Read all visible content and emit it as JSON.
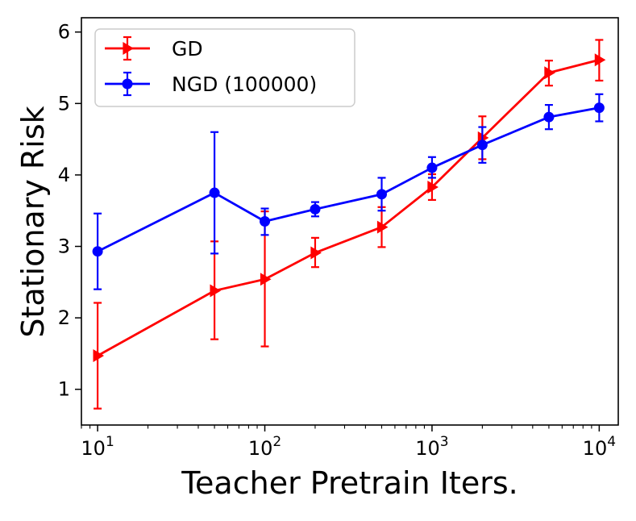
{
  "chart_data": {
    "type": "line",
    "xscale": "log",
    "xlabel": "Teacher Pretrain Iters.",
    "ylabel": "Stationary Risk",
    "xlim": [
      8,
      13000
    ],
    "ylim": [
      0.5,
      6.2
    ],
    "xticks": [
      {
        "value": 10,
        "base": "10",
        "exp": "1"
      },
      {
        "value": 100,
        "base": "10",
        "exp": "2"
      },
      {
        "value": 1000,
        "base": "10",
        "exp": "3"
      },
      {
        "value": 10000,
        "base": "10",
        "exp": "4"
      }
    ],
    "yticks": [
      {
        "value": 1,
        "label": "1"
      },
      {
        "value": 2,
        "label": "2"
      },
      {
        "value": 3,
        "label": "3"
      },
      {
        "value": 4,
        "label": "4"
      },
      {
        "value": 5,
        "label": "5"
      },
      {
        "value": 6,
        "label": "6"
      }
    ],
    "grid": false,
    "legend_position": "top-left",
    "series": [
      {
        "name": "GD",
        "color": "#ff0000",
        "marker": "triangle-right",
        "x": [
          10,
          50,
          100,
          200,
          500,
          1000,
          2000,
          5000,
          10000
        ],
        "y": [
          1.47,
          2.38,
          2.54,
          2.91,
          3.27,
          3.83,
          4.52,
          5.43,
          5.61
        ],
        "err_low": [
          0.73,
          1.7,
          1.6,
          2.71,
          2.99,
          3.65,
          4.22,
          5.25,
          5.32
        ],
        "err_high": [
          2.21,
          3.07,
          3.49,
          3.12,
          3.55,
          4.01,
          4.82,
          5.6,
          5.89
        ]
      },
      {
        "name": "NGD (100000)",
        "color": "#0000ff",
        "marker": "circle",
        "x": [
          10,
          50,
          100,
          200,
          500,
          1000,
          2000,
          5000,
          10000
        ],
        "y": [
          2.93,
          3.75,
          3.35,
          3.52,
          3.73,
          4.1,
          4.42,
          4.81,
          4.94
        ],
        "err_low": [
          2.4,
          2.9,
          3.16,
          3.42,
          3.5,
          3.96,
          4.17,
          4.64,
          4.75
        ],
        "err_high": [
          3.46,
          4.6,
          3.53,
          3.62,
          3.96,
          4.25,
          4.67,
          4.98,
          5.13
        ]
      }
    ]
  }
}
